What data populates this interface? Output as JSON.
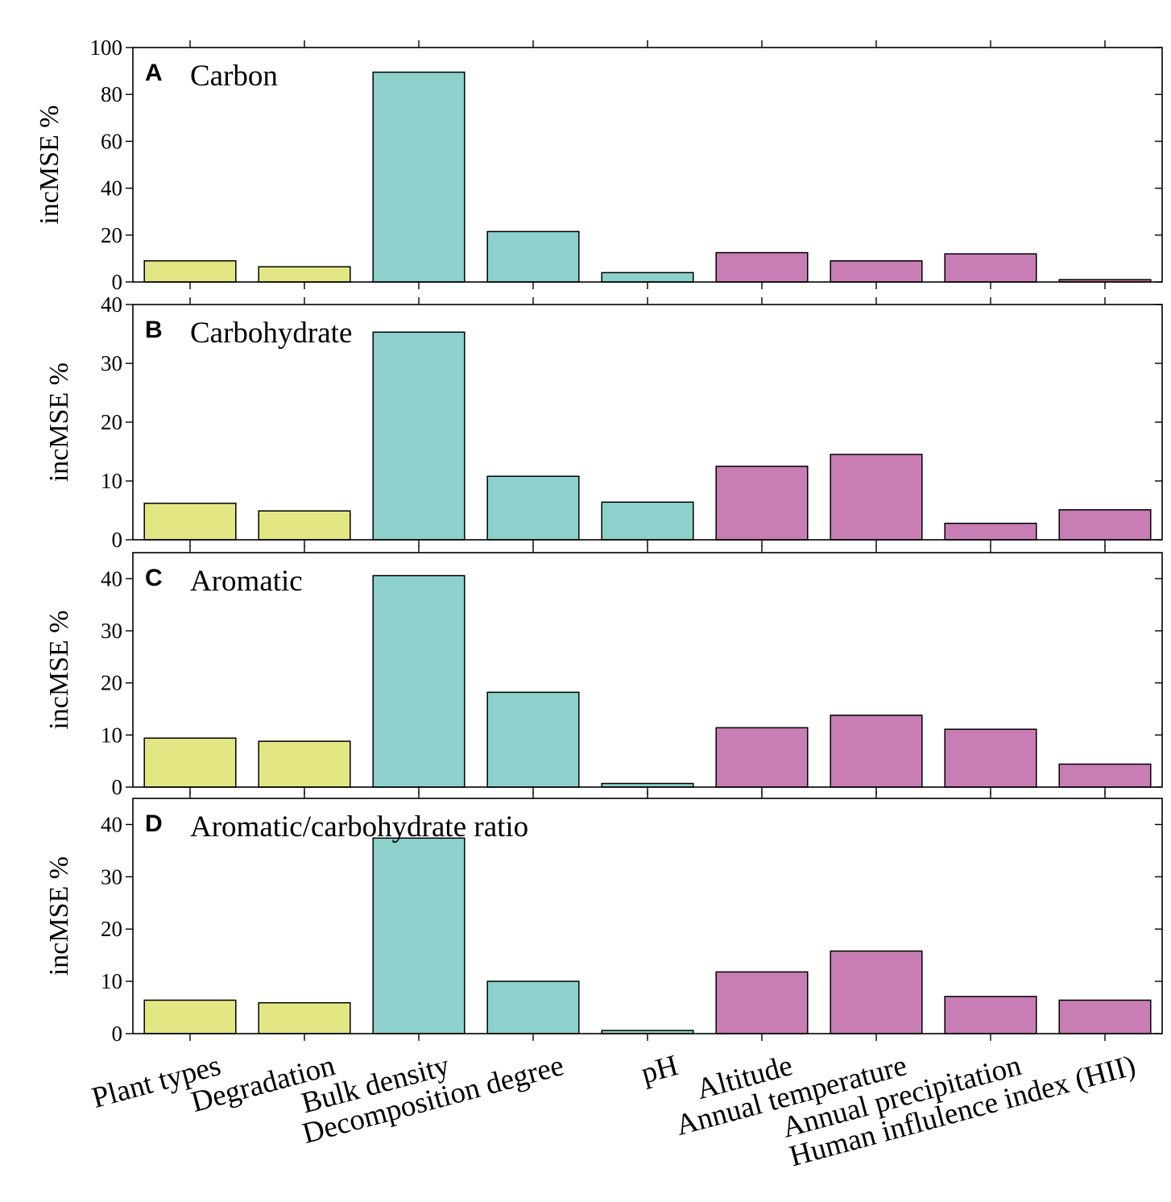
{
  "chart_data": {
    "type": "bar",
    "layout": "4 stacked panels sharing x categories",
    "categories": [
      "Plant types",
      "Degradation",
      "Bulk density",
      "Decomposition degree",
      "pH",
      "Altitude",
      "Annual temperature",
      "Annual precipitation",
      "Human influlence index (HII)"
    ],
    "category_groups": [
      "plant",
      "plant",
      "soil",
      "soil",
      "soil",
      "climate",
      "climate",
      "climate",
      "climate"
    ],
    "group_colors": {
      "plant": "#e2e784",
      "soil": "#8cd1cb",
      "climate": "#c87db4"
    },
    "panels": [
      {
        "letter": "A",
        "title": "Carbon",
        "ylabel": "incMSE %",
        "ylim": [
          0,
          100
        ],
        "yticks": [
          0,
          20,
          40,
          60,
          80,
          100
        ],
        "values": [
          9,
          6.5,
          89.5,
          21.5,
          4,
          12.5,
          9,
          12,
          1
        ]
      },
      {
        "letter": "B",
        "title": "Carbohydrate",
        "ylabel": "incMSE %",
        "ylim": [
          0,
          40
        ],
        "yticks": [
          0,
          10,
          20,
          30,
          40
        ],
        "values": [
          6.2,
          4.9,
          35.3,
          10.8,
          6.4,
          12.5,
          14.5,
          2.8,
          5.1
        ]
      },
      {
        "letter": "C",
        "title": "Aromatic",
        "ylabel": "incMSE %",
        "ylim": [
          0,
          45
        ],
        "yticks": [
          0,
          10,
          20,
          30,
          40
        ],
        "values": [
          9.4,
          8.8,
          40.6,
          18.2,
          0.7,
          11.4,
          13.8,
          11.1,
          4.4
        ]
      },
      {
        "letter": "D",
        "title": "Aromatic/carbohydrate ratio",
        "ylabel": "incMSE %",
        "ylim": [
          0,
          45
        ],
        "yticks": [
          0,
          10,
          20,
          30,
          40
        ],
        "values": [
          6.4,
          5.9,
          37.4,
          10,
          0.6,
          11.8,
          15.8,
          7.1,
          6.4
        ]
      }
    ]
  }
}
